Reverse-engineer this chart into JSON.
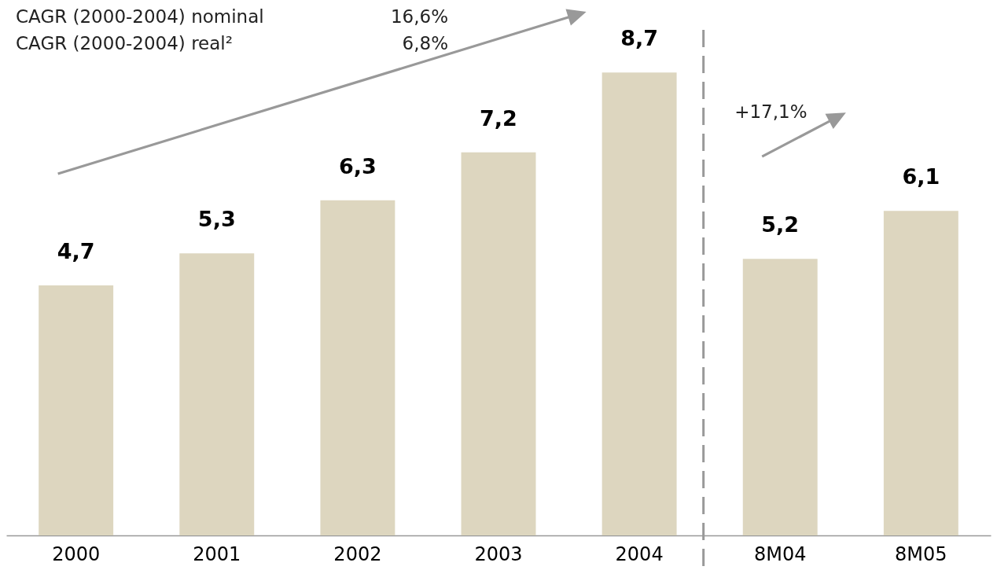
{
  "chart_data": {
    "type": "bar",
    "categories": [
      "2000",
      "2001",
      "2002",
      "2003",
      "2004",
      "8M04",
      "8M05"
    ],
    "values": [
      4.7,
      5.3,
      6.3,
      7.2,
      8.7,
      5.2,
      6.1
    ],
    "value_labels": [
      "4,7",
      "5,3",
      "6,3",
      "7,2",
      "8,7",
      "5,2",
      "6,1"
    ],
    "color": "#ddd6bf",
    "annotations": [
      "CAGR (2000-2004) nominal",
      "16,6%",
      "CAGR (2000-2004) real²",
      "6,8%",
      "+17,1%"
    ]
  }
}
